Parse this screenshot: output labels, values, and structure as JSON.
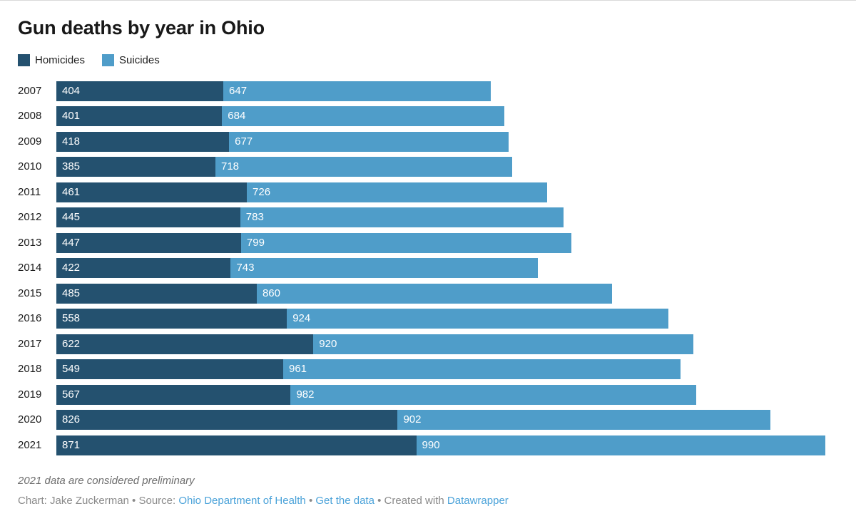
{
  "title": "Gun deaths by year in Ohio",
  "colors": {
    "homicides": "#24516F",
    "suicides": "#4F9DC9",
    "link": "#4AA2D9",
    "credit_text": "#8A8A8A"
  },
  "chart_data": {
    "type": "bar",
    "stacked": true,
    "orientation": "horizontal",
    "title": "Gun deaths by year in Ohio",
    "categories": [
      "2007",
      "2008",
      "2009",
      "2010",
      "2011",
      "2012",
      "2013",
      "2014",
      "2015",
      "2016",
      "2017",
      "2018",
      "2019",
      "2020",
      "2021"
    ],
    "series": [
      {
        "name": "Homicides",
        "color": "#24516F",
        "values": [
          404,
          401,
          418,
          385,
          461,
          445,
          447,
          422,
          485,
          558,
          622,
          549,
          567,
          826,
          871
        ]
      },
      {
        "name": "Suicides",
        "color": "#4F9DC9",
        "values": [
          647,
          684,
          677,
          718,
          726,
          783,
          799,
          743,
          860,
          924,
          920,
          961,
          982,
          902,
          990
        ]
      }
    ],
    "xlim": [
      0,
      1861
    ],
    "grid": false,
    "legend_position": "top",
    "value_labels": "inside-start"
  },
  "footer": {
    "note": "2021 data are considered preliminary",
    "credit_parts": [
      {
        "text": "Chart: Jake Zuckerman • Source: ",
        "link": false,
        "name": "credit-text"
      },
      {
        "text": "Ohio Department of Health",
        "link": true,
        "name": "source-link"
      },
      {
        "text": " • ",
        "link": false,
        "name": "credit-separator"
      },
      {
        "text": "Get the data",
        "link": true,
        "name": "get-the-data-link"
      },
      {
        "text": " • Created with ",
        "link": false,
        "name": "credit-text"
      },
      {
        "text": "Datawrapper",
        "link": true,
        "name": "datawrapper-link"
      }
    ]
  }
}
